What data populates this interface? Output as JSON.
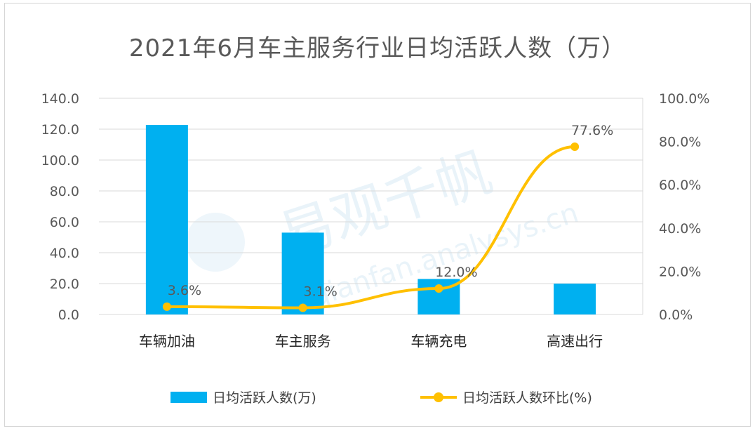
{
  "chart_data": {
    "type": "bar",
    "title": "2021年6月车主服务行业日均活跃人数（万）",
    "categories": [
      "车辆加油",
      "车主服务",
      "车辆充电",
      "高速出行"
    ],
    "series": [
      {
        "name": "日均活跃人数(万)",
        "type": "bar",
        "axis": "left",
        "color": "#00b0f0",
        "values": [
          122.7,
          53.0,
          23.0,
          20.0
        ]
      },
      {
        "name": "日均活跃人数环比(%)",
        "type": "line",
        "axis": "right",
        "color": "#ffc000",
        "values": [
          3.6,
          3.1,
          12.0,
          77.6
        ],
        "labels": [
          "3.6%",
          "3.1%",
          "12.0%",
          "77.6%"
        ]
      }
    ],
    "ylim": [
      0,
      140
    ],
    "yticks": [
      "0.0",
      "20.0",
      "40.0",
      "60.0",
      "80.0",
      "100.0",
      "120.0",
      "140.0"
    ],
    "y2lim": [
      0,
      100
    ],
    "y2ticks": [
      "0.0%",
      "20.0%",
      "40.0%",
      "60.0%",
      "80.0%",
      "100.0%"
    ],
    "grid": true,
    "legend_position": "bottom"
  },
  "watermark": {
    "main": "易观千帆",
    "sub": "qianfan.analysys.cn"
  }
}
